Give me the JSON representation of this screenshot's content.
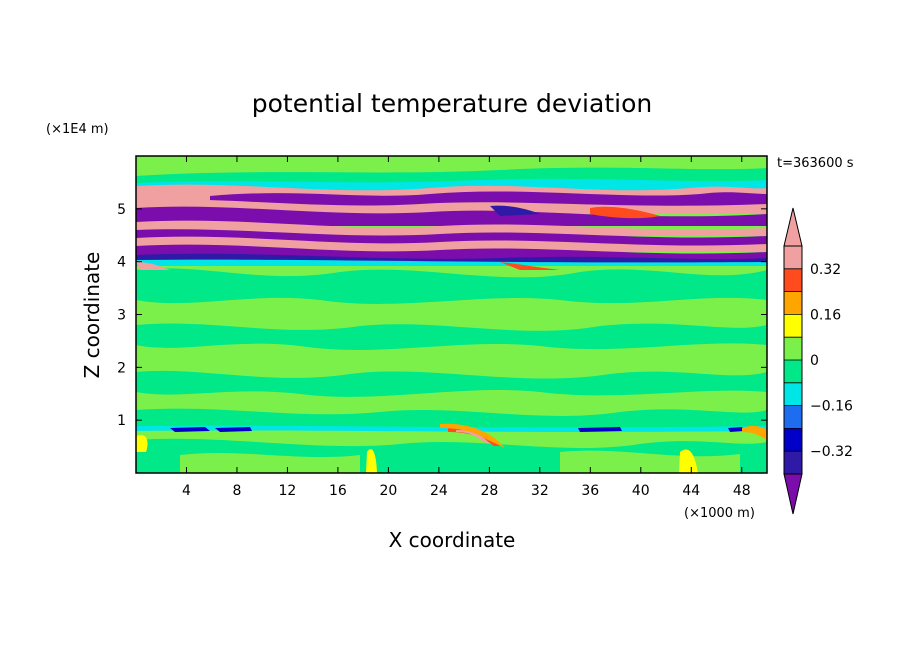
{
  "chart_data": {
    "type": "heatmap",
    "title": "potential temperature deviation",
    "xlabel": "X coordinate",
    "ylabel": "Z coordinate",
    "x_unit": "(×1000 m)",
    "y_unit": "(×1E4 m)",
    "time_label": "t=363600 s",
    "xlim": [
      0,
      50
    ],
    "ylim": [
      0,
      6
    ],
    "x_ticks": [
      4,
      8,
      12,
      16,
      20,
      24,
      28,
      32,
      36,
      40,
      44,
      48
    ],
    "y_ticks": [
      1,
      2,
      3,
      4,
      5
    ],
    "colorbar": {
      "levels": [
        -0.4,
        -0.32,
        -0.24,
        -0.16,
        -0.08,
        0,
        0.08,
        0.16,
        0.24,
        0.32,
        0.4
      ],
      "tick_labels": [
        "0.32",
        "0.16",
        "0",
        "−0.16",
        "−0.32"
      ],
      "tick_values": [
        0.32,
        0.16,
        0,
        -0.16,
        -0.32
      ],
      "colors": [
        "#7a0dab",
        "#2f1aa8",
        "#0000c8",
        "#1e6cf0",
        "#00e6e6",
        "#00e887",
        "#7cf04a",
        "#ffff00",
        "#ffa500",
        "#ff4b1e",
        "#f0a0a0"
      ],
      "extend": "both"
    },
    "layers": [
      {
        "z_range": [
          5.4,
          5.6
        ],
        "value": 0.45
      },
      {
        "z_range": [
          5.15,
          5.4
        ],
        "value": -0.45
      },
      {
        "z_range": [
          4.85,
          5.15
        ],
        "value": 0.45
      },
      {
        "z_range": [
          4.55,
          4.85
        ],
        "value": -0.45
      },
      {
        "z_range": [
          4.25,
          4.55
        ],
        "value": 0.45
      },
      {
        "z_range": [
          4.0,
          4.25
        ],
        "value": -0.45
      },
      {
        "z_range": [
          0.0,
          4.0
        ],
        "value": 0.04
      }
    ]
  }
}
